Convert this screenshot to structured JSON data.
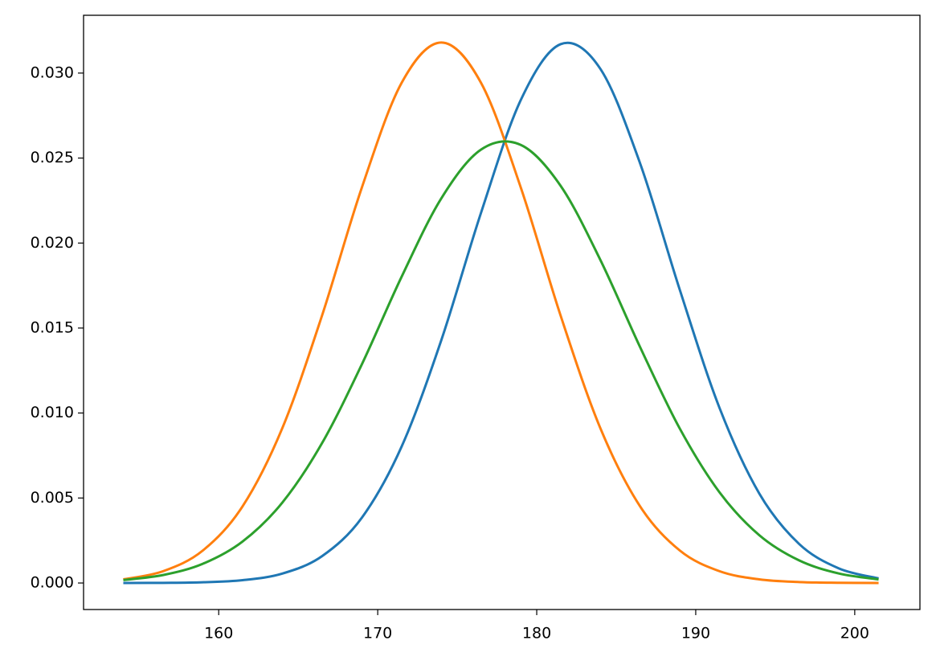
{
  "chart_data": {
    "type": "line",
    "x": [
      154,
      156.5,
      159,
      161.5,
      164,
      166.5,
      169,
      171.5,
      174,
      176.5,
      179,
      181.5,
      184,
      186.5,
      189,
      191.5,
      194,
      196.5,
      199,
      201.5
    ],
    "series": [
      {
        "color": "#1f77b4",
        "values": [
          1.7e-06,
          9.4e-06,
          4.26e-05,
          0.000166,
          0.000554,
          0.00158,
          0.00384,
          0.00802,
          0.01429,
          0.02179,
          0.02842,
          0.0317,
          0.03025,
          0.02469,
          0.01724,
          0.01029,
          0.00526,
          0.0023,
          0.00086,
          0.00027
        ]
      },
      {
        "color": "#ff7f0e",
        "values": [
          0.000214,
          0.000692,
          0.00191,
          0.00451,
          0.00911,
          0.01574,
          0.02326,
          0.02942,
          0.0318,
          0.02942,
          0.02326,
          0.01574,
          0.00911,
          0.00451,
          0.00191,
          0.000692,
          0.000214,
          5.68e-05,
          1.28e-05,
          2.5e-06
        ]
      },
      {
        "color": "#2ca02c",
        "values": [
          0.000174,
          0.000467,
          0.00113,
          0.00244,
          0.00473,
          0.00823,
          0.01286,
          0.01801,
          0.02263,
          0.0255,
          0.02577,
          0.02337,
          0.01901,
          0.01388,
          0.00908,
          0.00533,
          0.00281,
          0.00133,
          0.00056,
          0.00021
        ]
      }
    ],
    "xlim": [
      151.5,
      204.1
    ],
    "xticks": [
      160,
      170,
      180,
      190,
      200
    ],
    "ylim": [
      -0.00156,
      0.0334
    ],
    "yticks": [
      {
        "value": 0,
        "label": "0.000"
      },
      {
        "value": 0.005,
        "label": "0.005"
      },
      {
        "value": 0.01,
        "label": "0.010"
      },
      {
        "value": 0.015,
        "label": "0.015"
      },
      {
        "value": 0.02,
        "label": "0.020"
      },
      {
        "value": 0.025,
        "label": "0.025"
      },
      {
        "value": 0.03,
        "label": "0.030"
      }
    ],
    "grid": false
  }
}
